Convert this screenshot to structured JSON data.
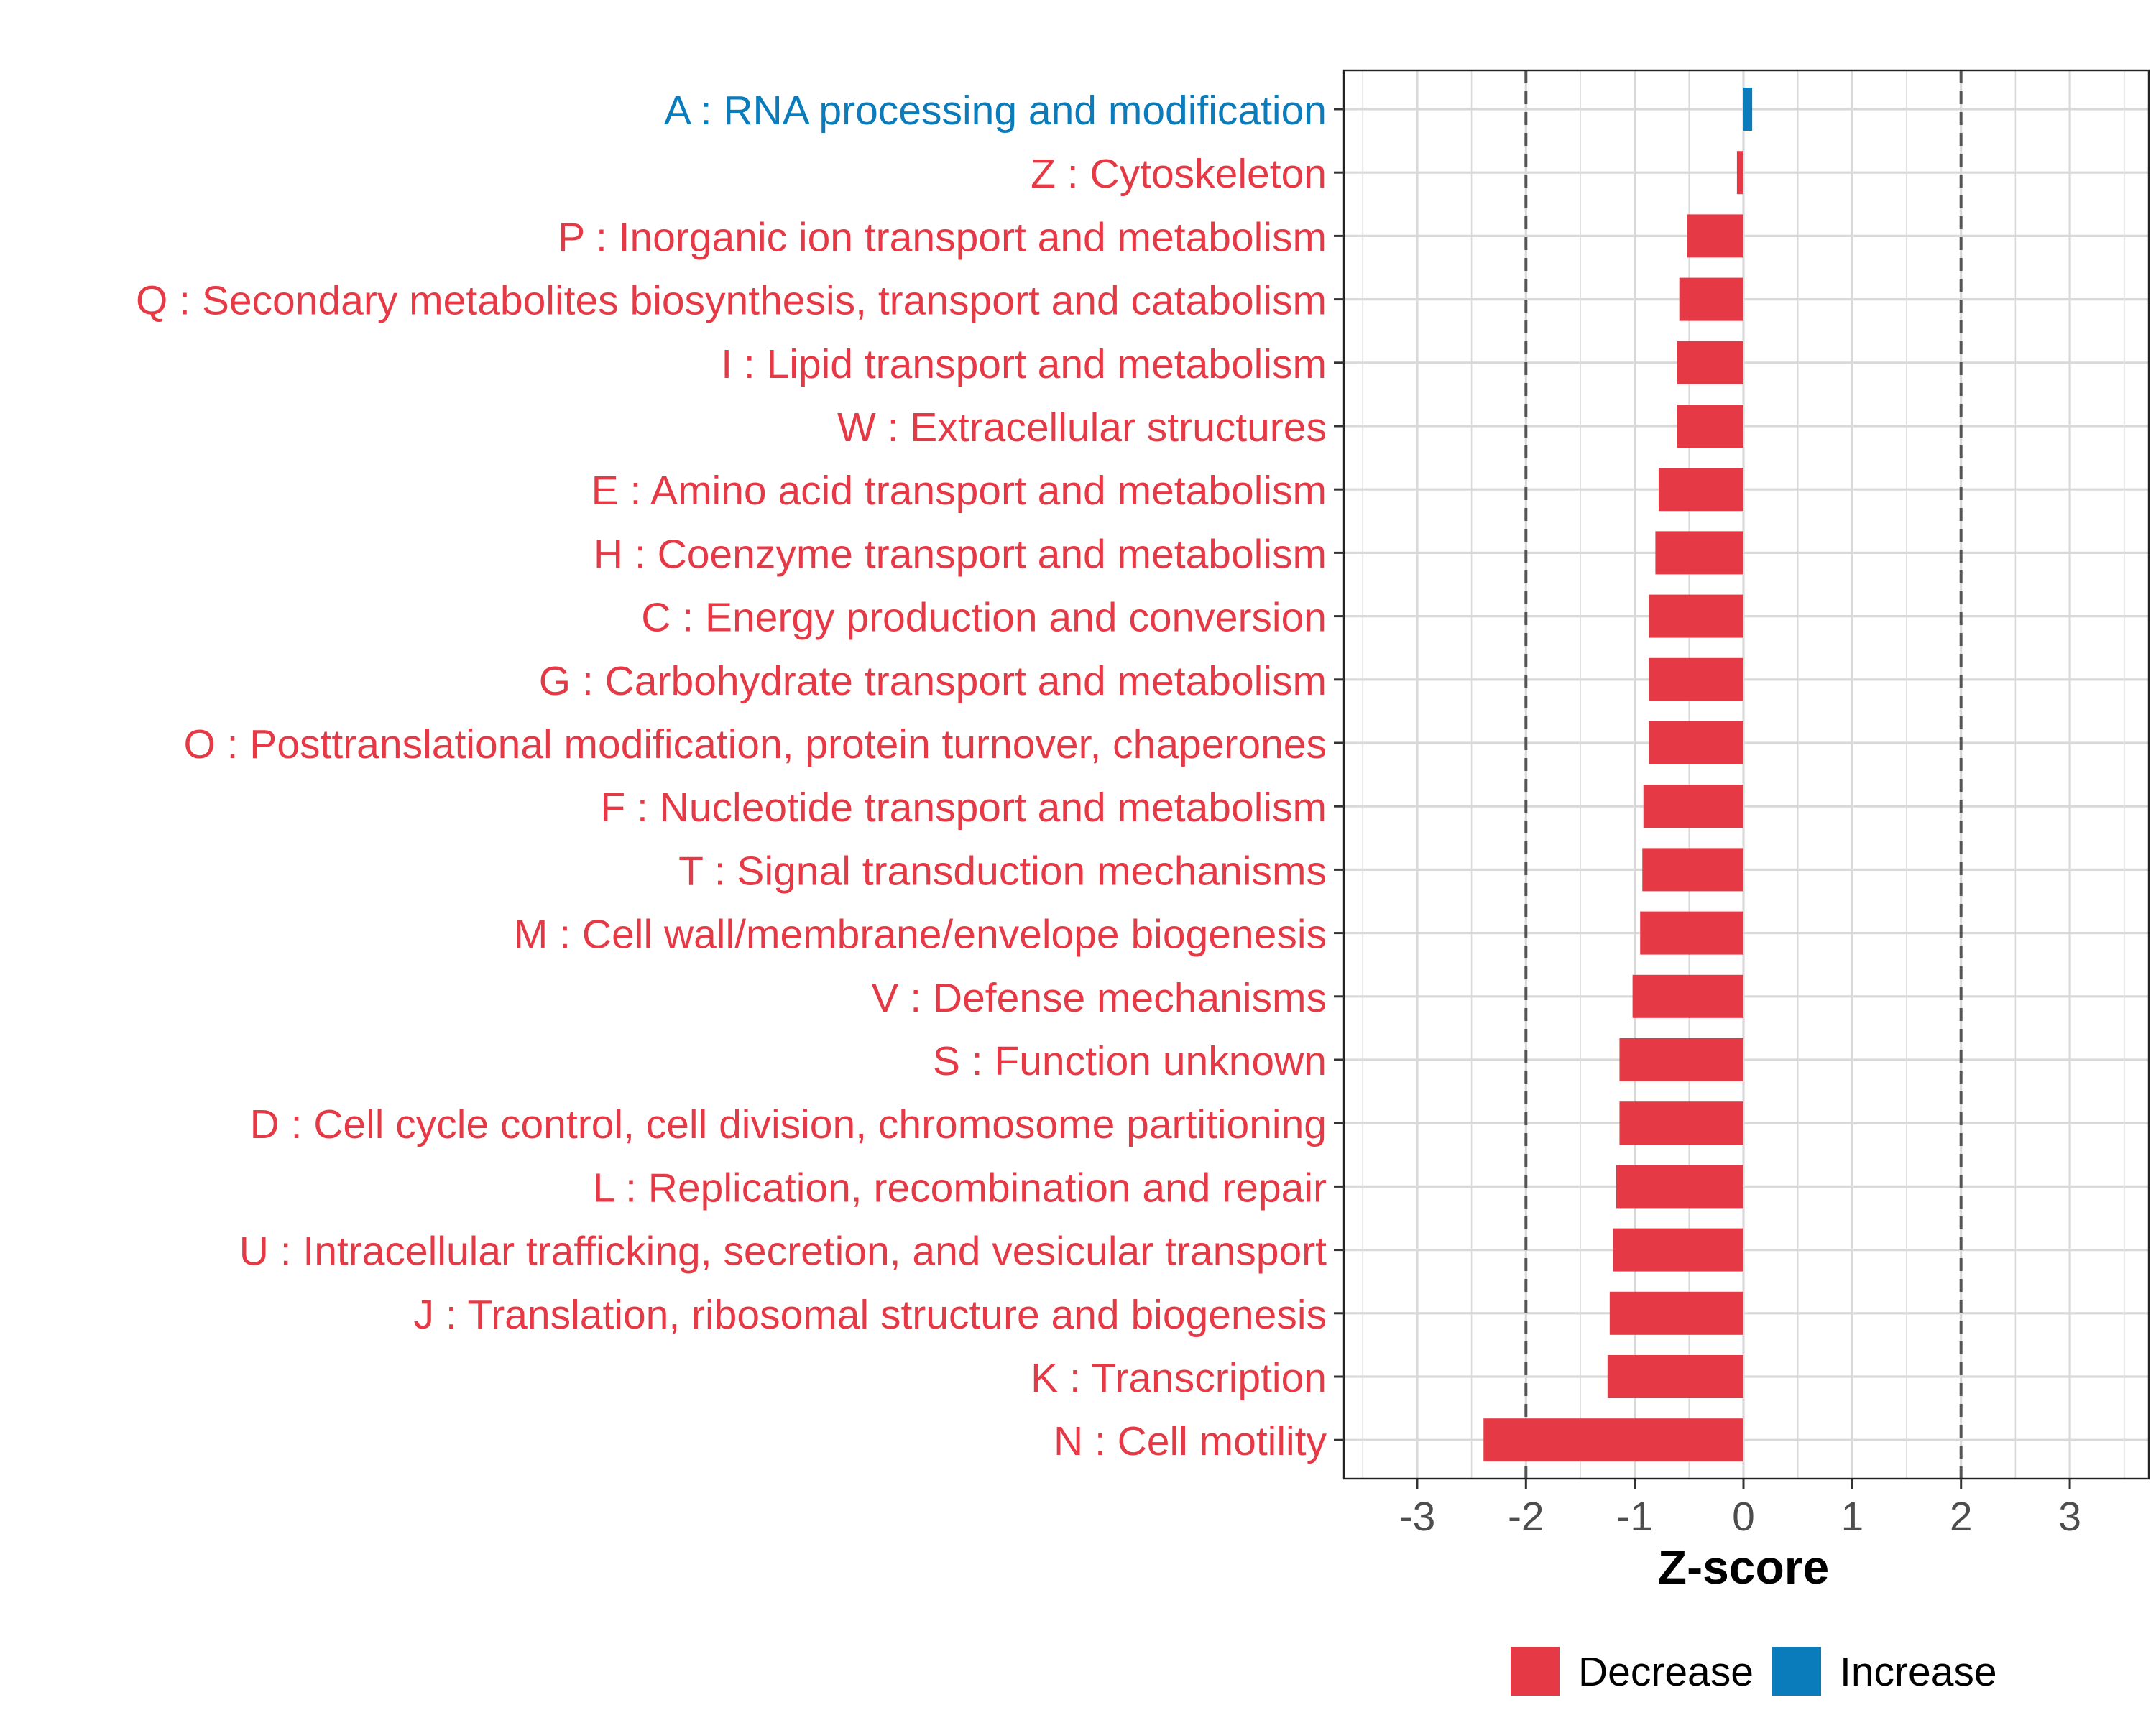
{
  "chart_data": {
    "type": "bar",
    "orientation": "horizontal",
    "title": "",
    "xlabel": "Z-score",
    "ylabel": "",
    "xlim": [
      -3.7,
      3.7
    ],
    "x_ticks": [
      -3,
      -2,
      -1,
      0,
      1,
      2,
      3
    ],
    "x_tick_labels": [
      "-3",
      "-2",
      "-1",
      "0",
      "1",
      "2",
      "3"
    ],
    "reference_lines": [
      -2,
      2
    ],
    "grid": true,
    "legend": {
      "placement": "bottom",
      "entries": [
        {
          "label": "Decrease",
          "color": "#e63946"
        },
        {
          "label": "Increase",
          "color": "#0a7bbb"
        }
      ]
    },
    "categories": [
      "A : RNA processing and modification",
      "Z : Cytoskeleton",
      "P : Inorganic ion transport and metabolism",
      "Q : Secondary metabolites biosynthesis, transport and catabolism",
      "I : Lipid transport and metabolism",
      "W : Extracellular structures",
      "E : Amino acid transport and metabolism",
      "H : Coenzyme transport and metabolism",
      "C : Energy production and conversion",
      "G : Carbohydrate transport and metabolism",
      "O : Posttranslational modification, protein turnover, chaperones",
      "F : Nucleotide transport and metabolism",
      "T : Signal transduction mechanisms",
      "M : Cell wall/membrane/envelope biogenesis",
      "V : Defense mechanisms",
      "S : Function unknown",
      "D : Cell cycle control, cell division, chromosome partitioning",
      "L : Replication, recombination and repair",
      "U : Intracellular trafficking, secretion, and vesicular transport",
      "J : Translation, ribosomal structure and biogenesis",
      "K : Transcription",
      "N : Cell motility"
    ],
    "values": [
      0.08,
      -0.06,
      -0.52,
      -0.59,
      -0.61,
      -0.61,
      -0.78,
      -0.81,
      -0.87,
      -0.87,
      -0.87,
      -0.92,
      -0.93,
      -0.95,
      -1.02,
      -1.14,
      -1.14,
      -1.17,
      -1.2,
      -1.23,
      -1.25,
      -2.39
    ],
    "direction": [
      "Increase",
      "Decrease",
      "Decrease",
      "Decrease",
      "Decrease",
      "Decrease",
      "Decrease",
      "Decrease",
      "Decrease",
      "Decrease",
      "Decrease",
      "Decrease",
      "Decrease",
      "Decrease",
      "Decrease",
      "Decrease",
      "Decrease",
      "Decrease",
      "Decrease",
      "Decrease",
      "Decrease",
      "Decrease"
    ]
  }
}
